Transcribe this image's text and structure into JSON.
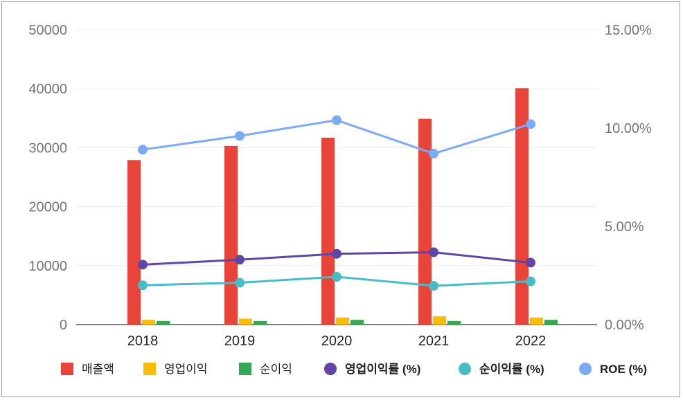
{
  "chart_data": {
    "type": "bar",
    "categories": [
      "2018",
      "2019",
      "2020",
      "2021",
      "2022"
    ],
    "bar_series": [
      {
        "name": "매출액",
        "color": "#e8443a",
        "values": [
          27900,
          30300,
          31700,
          34900,
          40100
        ]
      },
      {
        "name": "영업이익",
        "color": "#fbbc04",
        "values": [
          800,
          1000,
          1200,
          1400,
          1200
        ]
      },
      {
        "name": "순이익",
        "color": "#34a853",
        "values": [
          600,
          600,
          800,
          600,
          800
        ]
      }
    ],
    "line_series": [
      {
        "name": "영업이익률 (%)",
        "color": "#5e45a6",
        "values": [
          3.05,
          3.3,
          3.6,
          3.68,
          3.15
        ]
      },
      {
        "name": "순이익률 (%)",
        "color": "#46bdc6",
        "values": [
          2.0,
          2.13,
          2.43,
          1.97,
          2.2
        ]
      },
      {
        "name": "ROE (%)",
        "color": "#7baaf7",
        "values": [
          8.9,
          9.6,
          10.4,
          8.7,
          10.2
        ]
      }
    ],
    "y_left": {
      "ylim": [
        0,
        50000
      ],
      "ticks": [
        "0",
        "10000",
        "20000",
        "30000",
        "40000",
        "50000"
      ]
    },
    "y_right": {
      "ylim": [
        0,
        15
      ],
      "ticks": [
        "0.00%",
        "5.00%",
        "10.00%",
        "15.00%"
      ]
    },
    "grid": true,
    "legend_position": "bottom"
  }
}
